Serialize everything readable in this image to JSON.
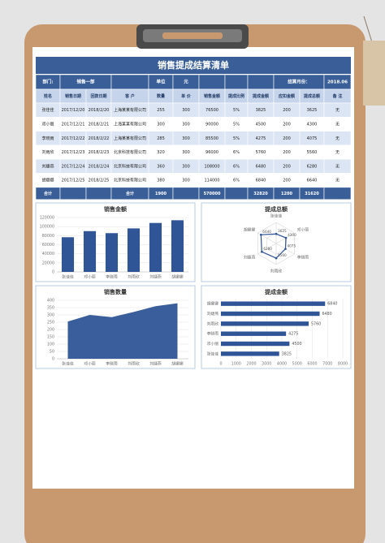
{
  "table": {
    "title": "销售提成结算清单",
    "info": {
      "dept_label": "部门:",
      "dept": "销售一部",
      "unit_label": "单位",
      "unit": "元",
      "month_label": "结算月份：",
      "month": "2018.06"
    },
    "columns": [
      "姓名",
      "销售日期",
      "回款日期",
      "客 户",
      "数量",
      "单 价",
      "销售金额",
      "提成比例",
      "提成金额",
      "应扣金额",
      "提成总额",
      "备 注"
    ],
    "rows": [
      [
        "张佳佳",
        "2017/12/20",
        "2018/2/20",
        "上海某某有限公司",
        255,
        300,
        76500,
        "5%",
        3825,
        200,
        3625,
        "无"
      ],
      [
        "邓小丽",
        "2017/12/21",
        "2018/2/21",
        "上海某某有限公司",
        300,
        300,
        90000,
        "5%",
        4500,
        200,
        4300,
        "无"
      ],
      [
        "李晓雨",
        "2017/12/22",
        "2018/2/22",
        "上海某某有限公司",
        285,
        300,
        85500,
        "5%",
        4275,
        200,
        4075,
        "无"
      ],
      [
        "刘雨欣",
        "2017/12/23",
        "2018/2/23",
        "北京科技有限公司",
        320,
        300,
        96000,
        "6%",
        5760,
        200,
        5560,
        "无"
      ],
      [
        "刘婕燕",
        "2017/12/24",
        "2018/2/24",
        "北京科技有限公司",
        360,
        300,
        108000,
        "6%",
        6480,
        200,
        6280,
        "无"
      ],
      [
        "胡娜娜",
        "2017/12/25",
        "2018/2/25",
        "北京科技有限公司",
        380,
        300,
        114000,
        "6%",
        6840,
        200,
        6640,
        "无"
      ]
    ],
    "total": {
      "name": "合计",
      "customer": "合计",
      "quantity": 1900,
      "amount": 570000,
      "commission": 32820,
      "deduction": 1200,
      "net": 31620
    }
  },
  "chart_data": [
    {
      "type": "bar",
      "title": "销售金额",
      "categories": [
        "张佳佳",
        "邓小丽",
        "李晓雨",
        "刘雨欣",
        "刘婕燕",
        "胡娜娜"
      ],
      "values": [
        76500,
        90000,
        85500,
        96000,
        108000,
        114000
      ],
      "color": "#2f5597",
      "ylim": [
        0,
        120000
      ],
      "yticks": [
        0,
        20000,
        40000,
        60000,
        80000,
        100000,
        120000
      ],
      "grid": true
    },
    {
      "type": "radar",
      "title": "提成总额",
      "categories": [
        "张佳佳",
        "邓小丽",
        "李晓雨",
        "刘雨欣",
        "刘婕燕",
        "胡娜娜"
      ],
      "values": [
        3625,
        4300,
        4075,
        5560,
        6280,
        6640
      ],
      "color": "#2f5597",
      "rlim": [
        0,
        8000
      ]
    },
    {
      "type": "area",
      "title": "销售数量",
      "categories": [
        "张佳佳",
        "邓小丽",
        "李晓雨",
        "刘雨欣",
        "刘婕燕",
        "胡娜娜"
      ],
      "values": [
        255,
        300,
        285,
        320,
        360,
        380
      ],
      "color": "#2f5597",
      "ylim": [
        0,
        400
      ],
      "yticks": [
        0,
        50,
        100,
        150,
        200,
        250,
        300,
        350,
        400
      ],
      "grid": true
    },
    {
      "type": "hbar",
      "title": "提成金额",
      "categories": [
        "张佳佳",
        "邓小丽",
        "李晓雨",
        "刘雨欣",
        "刘婕燕",
        "胡娜娜"
      ],
      "values": [
        3825,
        4500,
        4275,
        5760,
        6480,
        6840
      ],
      "color": "#2f5597",
      "xlim": [
        0,
        8000
      ],
      "xticks": [
        0,
        1000,
        2000,
        3000,
        4000,
        5000,
        6000,
        7000,
        8000
      ],
      "grid": true
    }
  ]
}
